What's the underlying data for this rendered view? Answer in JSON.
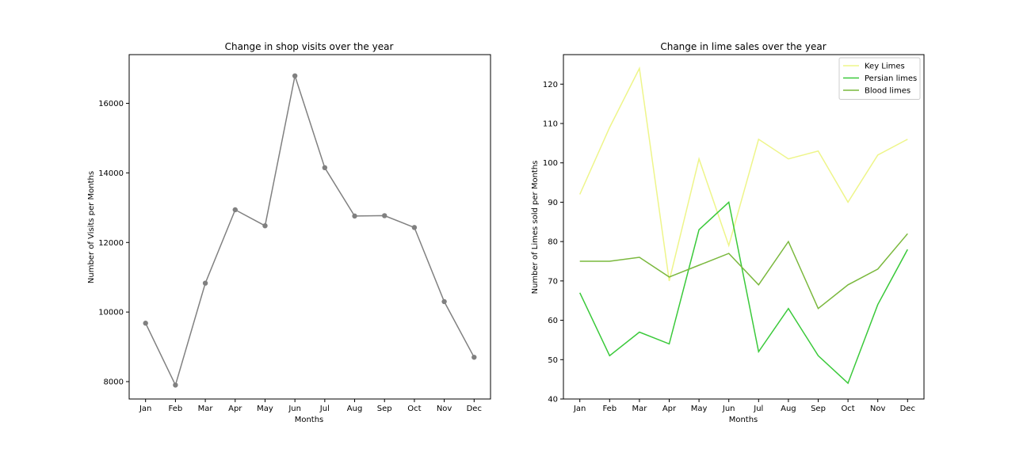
{
  "chart_data": [
    {
      "type": "line",
      "title": "Change in shop visits over the year",
      "xlabel": "Months",
      "ylabel": "Number of Visits per Months",
      "categories": [
        "Jan",
        "Feb",
        "Mar",
        "Apr",
        "May",
        "Jun",
        "Jul",
        "Aug",
        "Sep",
        "Oct",
        "Nov",
        "Dec"
      ],
      "ylim": [
        7500,
        17400
      ],
      "yticks": [
        8000,
        10000,
        12000,
        14000,
        16000
      ],
      "markers": true,
      "grid": false,
      "series": [
        {
          "color": "#808080",
          "values": [
            9680,
            7900,
            10830,
            12940,
            12480,
            16790,
            14150,
            12760,
            12770,
            12430,
            10300,
            8700
          ]
        }
      ]
    },
    {
      "type": "line",
      "title": "Change in lime sales over the year",
      "xlabel": "Months",
      "ylabel": "Number of Limes sold per Months",
      "categories": [
        "Jan",
        "Feb",
        "Mar",
        "Apr",
        "May",
        "Jun",
        "Jul",
        "Aug",
        "Sep",
        "Oct",
        "Nov",
        "Dec"
      ],
      "ylim": [
        40,
        127.5
      ],
      "yticks": [
        40,
        50,
        60,
        70,
        80,
        90,
        100,
        110,
        120
      ],
      "grid": false,
      "legend": "top-right",
      "series": [
        {
          "name": "Key Limes",
          "color": "#eef58a",
          "values": [
            92,
            109,
            124,
            70,
            101,
            79,
            106,
            101,
            103,
            90,
            102,
            106
          ]
        },
        {
          "name": "Persian limes",
          "color": "#3ac93a",
          "values": [
            67,
            51,
            57,
            54,
            83,
            90,
            52,
            63,
            51,
            44,
            64,
            78
          ]
        },
        {
          "name": "Blood limes",
          "color": "#7ab83d",
          "values": [
            75,
            75,
            76,
            71,
            74,
            77,
            69,
            80,
            63,
            69,
            73,
            82
          ]
        }
      ]
    }
  ]
}
